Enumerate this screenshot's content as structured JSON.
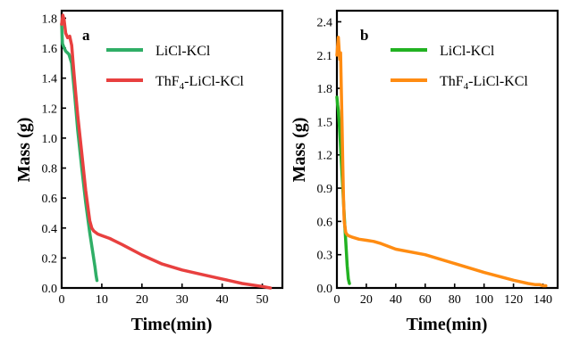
{
  "chart_data": [
    {
      "type": "line",
      "panel_label": "a",
      "xlabel": "Time(min)",
      "ylabel": "Mass (g)",
      "xlim": [
        0,
        55
      ],
      "ylim": [
        0,
        1.85
      ],
      "x_ticks": [
        0,
        10,
        20,
        30,
        40,
        50
      ],
      "y_ticks": [
        0.0,
        0.2,
        0.4,
        0.6,
        0.8,
        1.0,
        1.2,
        1.4,
        1.6,
        1.8
      ],
      "y_tick_labels": [
        "0.0",
        "0.2",
        "0.4",
        "0.6",
        "0.8",
        "1.0",
        "1.2",
        "1.4",
        "1.6",
        "1.8"
      ],
      "legend_placement": "top-right",
      "series": [
        {
          "name": "LiCl-KCl",
          "name_main": "LiCl-KCl",
          "color": "#2fae66",
          "x": [
            0,
            0.2,
            0.5,
            1.0,
            1.8,
            2.5,
            3.2,
            4.0,
            5.0,
            6.0,
            7.0,
            7.8,
            8.3,
            8.6,
            8.8
          ],
          "y": [
            1.76,
            1.63,
            1.61,
            1.58,
            1.56,
            1.5,
            1.3,
            1.05,
            0.8,
            0.57,
            0.37,
            0.23,
            0.14,
            0.08,
            0.05
          ]
        },
        {
          "name": "ThF4-LiCl-KCl",
          "name_pre": "ThF",
          "name_sub": "4",
          "name_post": "-LiCl-KCl",
          "color": "#e8403f",
          "x": [
            0,
            0.3,
            0.6,
            1.0,
            1.5,
            2.0,
            2.5,
            3.0,
            3.5,
            4.0,
            5.0,
            6.0,
            7.0,
            7.5,
            8.0,
            9.0,
            10.0,
            12.0,
            15.0,
            20.0,
            25.0,
            30.0,
            35.0,
            40.0,
            45.0,
            50.0,
            52.0
          ],
          "y": [
            1.76,
            1.82,
            1.79,
            1.7,
            1.67,
            1.68,
            1.62,
            1.45,
            1.3,
            1.15,
            0.9,
            0.65,
            0.45,
            0.4,
            0.38,
            0.36,
            0.35,
            0.33,
            0.29,
            0.22,
            0.16,
            0.12,
            0.09,
            0.06,
            0.03,
            0.01,
            0.0
          ]
        }
      ]
    },
    {
      "type": "line",
      "panel_label": "b",
      "xlabel": "Time(min)",
      "ylabel": "Mass (g)",
      "xlim": [
        0,
        150
      ],
      "ylim": [
        0,
        2.5
      ],
      "x_ticks": [
        0,
        20,
        40,
        60,
        80,
        100,
        120,
        140
      ],
      "y_ticks": [
        0.0,
        0.3,
        0.6,
        0.9,
        1.2,
        1.5,
        1.8,
        2.1,
        2.4
      ],
      "y_tick_labels": [
        "0.0",
        "0.3",
        "0.6",
        "0.9",
        "1.2",
        "1.5",
        "1.8",
        "2.1",
        "2.4"
      ],
      "legend_placement": "top-right",
      "series": [
        {
          "name": "LiCl-KCl",
          "name_main": "LiCl-KCl",
          "color": "#22b222",
          "x": [
            0,
            0.5,
            1.0,
            2.0,
            3.0,
            4.0,
            5.0,
            6.0,
            7.0,
            7.8,
            8.5
          ],
          "y": [
            1.72,
            1.65,
            1.6,
            1.4,
            1.15,
            0.9,
            0.65,
            0.42,
            0.2,
            0.08,
            0.04
          ]
        },
        {
          "name": "ThF4-LiCl-KCl",
          "name_pre": "ThF",
          "name_sub": "4",
          "name_post": "-LiCl-KCl",
          "color": "#ff8c12",
          "x": [
            0,
            0.5,
            1.0,
            1.5,
            2.0,
            2.5,
            3.0,
            3.5,
            4.0,
            4.5,
            5.0,
            6.0,
            7.0,
            8.0,
            10.0,
            15.0,
            20.0,
            25.0,
            30.0,
            40.0,
            60.0,
            80.0,
            100.0,
            120.0,
            130.0,
            135.0,
            138.0,
            140.0,
            142.0
          ],
          "y": [
            2.1,
            2.18,
            2.26,
            2.14,
            2.06,
            2.12,
            1.8,
            1.45,
            1.1,
            0.8,
            0.6,
            0.5,
            0.48,
            0.47,
            0.46,
            0.44,
            0.43,
            0.42,
            0.4,
            0.35,
            0.3,
            0.22,
            0.14,
            0.07,
            0.04,
            0.03,
            0.03,
            0.02,
            0.02
          ]
        }
      ]
    }
  ]
}
